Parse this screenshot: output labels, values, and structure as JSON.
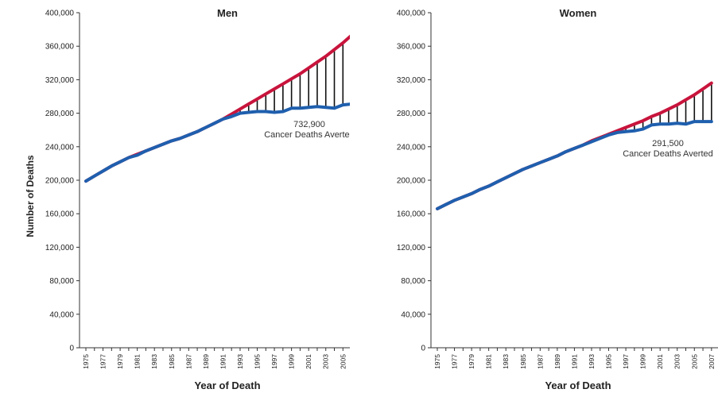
{
  "ylabel": "Number of Deaths",
  "chart_data": [
    {
      "type": "line",
      "title": "Men",
      "xlabel": "Year of Death",
      "ylabel": "Number of Deaths",
      "ylim": [
        0,
        400000
      ],
      "y_ticks": [
        "0",
        "40,000",
        "80,000",
        "120,000",
        "160,000",
        "200,000",
        "240,000",
        "280,000",
        "320,000",
        "360,000",
        "400,000"
      ],
      "x_ticks": [
        "1975",
        "1977",
        "1979",
        "1981",
        "1983",
        "1985",
        "1987",
        "1989",
        "1991",
        "1993",
        "1995",
        "1997",
        "1999",
        "2001",
        "2003",
        "2005",
        "2007"
      ],
      "x": [
        1975,
        1976,
        1977,
        1978,
        1979,
        1980,
        1981,
        1982,
        1983,
        1984,
        1985,
        1986,
        1987,
        1988,
        1989,
        1990,
        1991,
        1992,
        1993,
        1994,
        1995,
        1996,
        1997,
        1998,
        1999,
        2000,
        2001,
        2002,
        2003,
        2004,
        2005,
        2006,
        2007
      ],
      "series": [
        {
          "name": "expected",
          "color": "#c8143c",
          "values": [
            199000,
            205000,
            211000,
            217000,
            222000,
            227000,
            231000,
            235000,
            239000,
            243000,
            247000,
            250000,
            254000,
            258000,
            263000,
            268000,
            273000,
            279000,
            285000,
            291000,
            297000,
            303000,
            309000,
            315000,
            321000,
            327000,
            334000,
            341000,
            348000,
            356000,
            364000,
            373000,
            386000
          ]
        },
        {
          "name": "observed",
          "color": "#1f5fae",
          "values": [
            199000,
            205000,
            211000,
            217000,
            222000,
            227000,
            230000,
            235000,
            239000,
            243000,
            247000,
            250000,
            254000,
            258000,
            263000,
            268000,
            273000,
            276000,
            280000,
            281000,
            282000,
            282000,
            281000,
            282000,
            286000,
            286000,
            287000,
            288000,
            287000,
            286000,
            290000,
            291000,
            294000
          ]
        }
      ],
      "annotation_value": "732,900",
      "annotation_text": "Cancer Deaths Averted"
    },
    {
      "type": "line",
      "title": "Women",
      "xlabel": "Year of Death",
      "ylabel": "Number of Deaths",
      "ylim": [
        0,
        400000
      ],
      "y_ticks": [
        "0",
        "40,000",
        "80,000",
        "120,000",
        "160,000",
        "200,000",
        "240,000",
        "280,000",
        "320,000",
        "360,000",
        "400,000"
      ],
      "x_ticks": [
        "1975",
        "1977",
        "1979",
        "1981",
        "1983",
        "1985",
        "1987",
        "1989",
        "1991",
        "1993",
        "1995",
        "1997",
        "1999",
        "2001",
        "2003",
        "2005",
        "2007"
      ],
      "x": [
        1975,
        1976,
        1977,
        1978,
        1979,
        1980,
        1981,
        1982,
        1983,
        1984,
        1985,
        1986,
        1987,
        1988,
        1989,
        1990,
        1991,
        1992,
        1993,
        1994,
        1995,
        1996,
        1997,
        1998,
        1999,
        2000,
        2001,
        2002,
        2003,
        2004,
        2005,
        2006,
        2007
      ],
      "series": [
        {
          "name": "expected",
          "color": "#c8143c",
          "values": [
            166000,
            171000,
            176000,
            180000,
            184000,
            189000,
            193000,
            198000,
            203000,
            208000,
            213000,
            217000,
            221000,
            225000,
            229000,
            234000,
            238000,
            242000,
            247000,
            251000,
            255000,
            259000,
            263000,
            267000,
            271000,
            276000,
            280000,
            285000,
            290000,
            296000,
            302000,
            309000,
            316000
          ]
        },
        {
          "name": "observed",
          "color": "#1f5fae",
          "values": [
            166000,
            171000,
            176000,
            180000,
            184000,
            189000,
            193000,
            198000,
            203000,
            208000,
            213000,
            217000,
            221000,
            225000,
            229000,
            234000,
            238000,
            242000,
            246000,
            250000,
            254000,
            257000,
            258000,
            259000,
            261000,
            266000,
            267000,
            267000,
            268000,
            267000,
            270000,
            270000,
            270000
          ]
        }
      ],
      "annotation_value": "291,500",
      "annotation_text": "Cancer Deaths Averted"
    }
  ]
}
